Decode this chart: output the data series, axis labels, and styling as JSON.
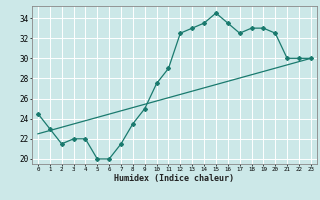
{
  "xlabel": "Humidex (Indice chaleur)",
  "ylabel": "",
  "background_color": "#cce8e8",
  "grid_color": "#ffffff",
  "line_color": "#1a7a6e",
  "xlim": [
    -0.5,
    23.5
  ],
  "ylim": [
    19.5,
    35.2
  ],
  "yticks": [
    20,
    22,
    24,
    26,
    28,
    30,
    32,
    34
  ],
  "xticks": [
    0,
    1,
    2,
    3,
    4,
    5,
    6,
    7,
    8,
    9,
    10,
    11,
    12,
    13,
    14,
    15,
    16,
    17,
    18,
    19,
    20,
    21,
    22,
    23
  ],
  "curve1_x": [
    0,
    1,
    2,
    3,
    4,
    5,
    6,
    7,
    8,
    9,
    10,
    11,
    12,
    13,
    14,
    15,
    16,
    17,
    18,
    19,
    20,
    21,
    22,
    23
  ],
  "curve1_y": [
    24.5,
    23.0,
    21.5,
    22.0,
    22.0,
    20.0,
    20.0,
    21.5,
    23.5,
    25.0,
    27.5,
    29.0,
    32.5,
    33.0,
    33.5,
    34.5,
    33.5,
    32.5,
    33.0,
    33.0,
    32.5,
    30.0,
    30.0,
    30.0
  ],
  "curve2_x": [
    0,
    23
  ],
  "curve2_y": [
    22.5,
    30.0
  ]
}
